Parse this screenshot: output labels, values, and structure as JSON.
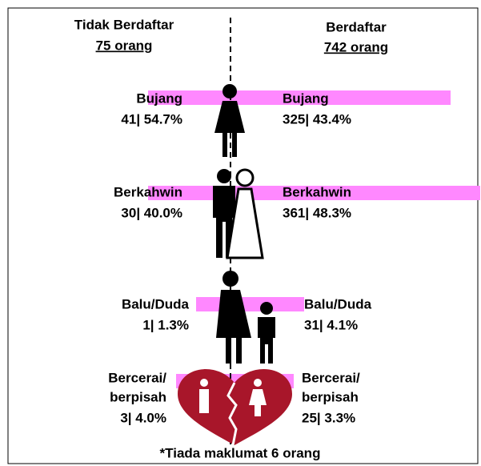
{
  "header": {
    "left_title": "Tidak Berdaftar",
    "left_total": "75 orang",
    "right_title": "Berdaftar",
    "right_total": "742 orang"
  },
  "rows": [
    {
      "left_label": [
        "Bujang"
      ],
      "left_value": "41| 54.7%",
      "right_label": [
        "Bujang"
      ],
      "right_value": "325| 43.4%"
    },
    {
      "left_label": [
        "Berkahwin"
      ],
      "left_value": "30| 40.0%",
      "right_label": [
        "Berkahwin"
      ],
      "right_value": "361| 48.3%"
    },
    {
      "left_label": [
        "Balu/Duda"
      ],
      "left_value": "1| 1.3%",
      "right_label": [
        "Balu/Duda"
      ],
      "right_value": "31| 4.1%"
    },
    {
      "left_label": [
        "Bercerai/",
        "berpisah"
      ],
      "left_value": "3| 4.0%",
      "right_label": [
        "Bercerai/",
        "berpisah"
      ],
      "right_value": "25| 3.3%"
    }
  ],
  "footer": "*Tiada maklumat 6 orang"
}
